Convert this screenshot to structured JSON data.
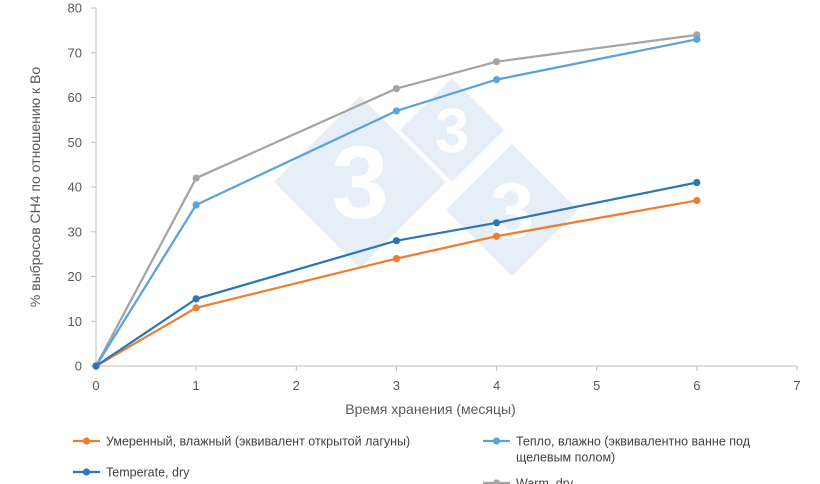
{
  "chart_data": {
    "type": "line",
    "title": "",
    "xlabel": "Время хранения (месяцы)",
    "ylabel": "% выбросов CH4 по отношению к Bo",
    "xlim": [
      0,
      7
    ],
    "ylim": [
      0,
      80
    ],
    "xticks": [
      0,
      1,
      2,
      3,
      4,
      5,
      6,
      7
    ],
    "yticks": [
      0,
      10,
      20,
      30,
      40,
      50,
      60,
      70,
      80
    ],
    "grid": false,
    "legend_position": "bottom",
    "x": [
      0,
      1,
      3,
      4,
      6
    ],
    "series": [
      {
        "name": "Умеренный, влажный (эквивалент открытой лагуны)",
        "color": "#ED7D31",
        "values": [
          0,
          13,
          24,
          29,
          37
        ]
      },
      {
        "name": "Тепло, влажно (эквивалентно ванне под щелевым полом)",
        "name_lines": [
          "Тепло, влажно (эквивалентно ванне под",
          "щелевым полом)"
        ],
        "color": "#5BA3D9",
        "values": [
          0,
          36,
          57,
          64,
          73
        ]
      },
      {
        "name": "Temperate, dry",
        "color": "#2E75B6",
        "values": [
          0,
          15,
          28,
          32,
          41
        ]
      },
      {
        "name": "Warm, dry",
        "color": "#A5A5A5",
        "values": [
          0,
          42,
          62,
          68,
          74
        ]
      }
    ]
  }
}
